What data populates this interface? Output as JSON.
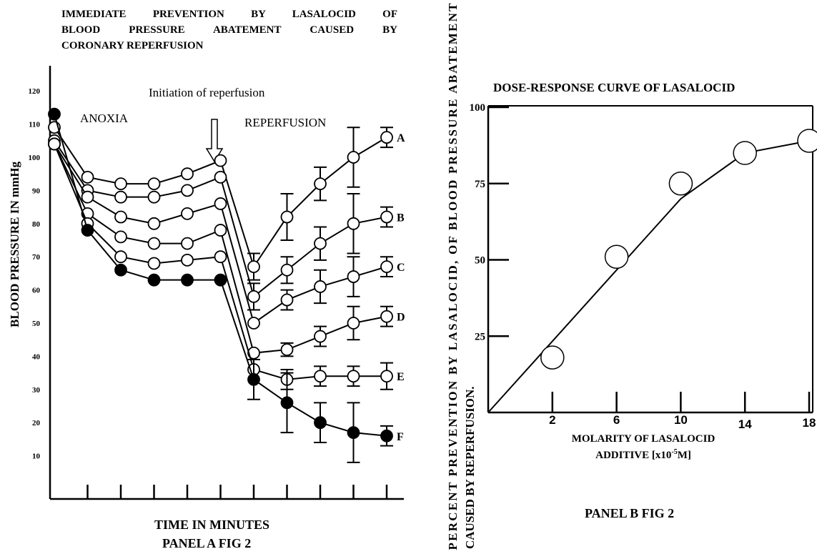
{
  "panel_a": {
    "title_lines": [
      "IMMEDIATE PREVENTION BY LASALOCID OF",
      "BLOOD PRESSURE ABATEMENT CAUSED BY",
      "CORONARY REPERFUSION"
    ],
    "ylabel": "BLOOD PRESSURE IN mmHg",
    "xlabel": "TIME IN MINUTES",
    "caption": "PANEL A FIG 2",
    "annotations": {
      "anoxia": "ANOXIA",
      "reperfusion": "REPERFUSION",
      "initiation": "Initiation of reperfusion"
    }
  },
  "panel_b": {
    "title": "DOSE-RESPONSE CURVE OF LASALOCID",
    "ylabel_line1": "PERCENT PREVENTION BY LASALOCID, OF BLOOD PRESSURE ABATEMENT",
    "ylabel_line2": "CAUSED BY REPERFUSION.",
    "xlabel_line1": "MOLARITY OF LASALOCID",
    "xlabel_line2_pre": "ADDITIVE [x10",
    "xlabel_line2_sup": "-5",
    "xlabel_line2_post": "M]",
    "caption": "PANEL B FIG 2"
  },
  "chart_data": [
    {
      "type": "line",
      "title": "IMMEDIATE PREVENTION BY LASALOCID OF BLOOD PRESSURE ABATEMENT CAUSED BY CORONARY REPERFUSION",
      "xlabel": "TIME IN MINUTES",
      "ylabel": "BLOOD PRESSURE IN mmHg",
      "y_ticks": [
        10,
        20,
        30,
        40,
        50,
        60,
        70,
        80,
        90,
        100,
        110,
        120
      ],
      "ylim": [
        0,
        128
      ],
      "x": [
        0,
        1,
        2,
        3,
        4,
        5,
        6,
        7,
        8,
        9,
        10
      ],
      "series": [
        {
          "name": "A",
          "filled": false,
          "values": [
            109,
            94,
            92,
            92,
            95,
            99,
            67,
            82,
            92,
            100,
            106
          ],
          "errors": [
            null,
            null,
            null,
            null,
            null,
            null,
            4,
            7,
            5,
            9,
            3
          ]
        },
        {
          "name": "B",
          "filled": false,
          "values": [
            105,
            90,
            88,
            88,
            90,
            94,
            58,
            66,
            74,
            80,
            82
          ],
          "errors": [
            null,
            null,
            null,
            null,
            null,
            null,
            4,
            4,
            5,
            9,
            3
          ]
        },
        {
          "name": "C",
          "filled": false,
          "values": [
            104,
            88,
            82,
            80,
            83,
            86,
            50,
            57,
            61,
            64,
            67
          ],
          "errors": [
            null,
            null,
            null,
            null,
            null,
            null,
            null,
            3,
            5,
            6,
            3
          ]
        },
        {
          "name": "D",
          "filled": false,
          "values": [
            104,
            83,
            76,
            74,
            74,
            78,
            41,
            42,
            46,
            50,
            52
          ],
          "errors": [
            null,
            null,
            null,
            null,
            null,
            null,
            null,
            2,
            3,
            5,
            3
          ]
        },
        {
          "name": "E",
          "filled": false,
          "values": [
            104,
            80,
            70,
            68,
            69,
            70,
            36,
            33,
            34,
            34,
            34
          ],
          "errors": [
            null,
            null,
            null,
            null,
            null,
            null,
            null,
            3,
            3,
            3,
            4
          ]
        },
        {
          "name": "F",
          "filled": true,
          "values": [
            113,
            78,
            66,
            63,
            63,
            63,
            33,
            26,
            20,
            17,
            16
          ],
          "errors": [
            null,
            null,
            null,
            null,
            null,
            null,
            6,
            9,
            6,
            9,
            3
          ]
        }
      ],
      "annotations": [
        "ANOXIA",
        "REPERFUSION",
        "Initiation of reperfusion"
      ]
    },
    {
      "type": "line",
      "title": "DOSE-RESPONSE CURVE OF LASALOCID",
      "xlabel": "MOLARITY OF LASALOCID ADDITIVE [x10-5M]",
      "ylabel": "PERCENT PREVENTION BY LASALOCID, OF BLOOD PRESSURE ABATEMENT CAUSED BY REPERFUSION.",
      "x_ticks": [
        2,
        6,
        10,
        14,
        18
      ],
      "y_ticks": [
        25,
        50,
        75,
        100
      ],
      "xlim": [
        -2,
        18
      ],
      "ylim": [
        0,
        100
      ],
      "points": [
        {
          "x": 2,
          "y": 18
        },
        {
          "x": 6,
          "y": 51
        },
        {
          "x": 10,
          "y": 75
        },
        {
          "x": 14,
          "y": 85
        },
        {
          "x": 18,
          "y": 89
        }
      ]
    }
  ]
}
